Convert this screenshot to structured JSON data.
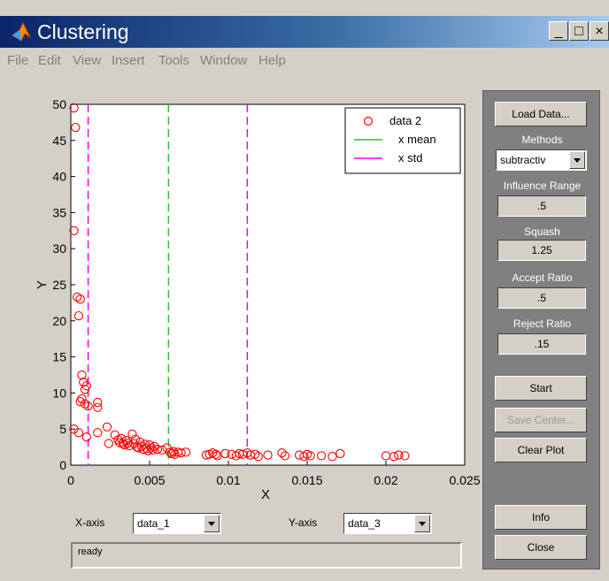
{
  "window": {
    "title": "Clustering"
  },
  "menu": [
    "File",
    "Edit",
    "View",
    "Insert",
    "Tools",
    "Window",
    "Help"
  ],
  "controls": {
    "load_data": "Load Data...",
    "methods_label": "Methods",
    "methods_value": "subtractiv",
    "influence_label": "Influence Range",
    "influence_value": ".5",
    "squash_label": "Squash",
    "squash_value": "1.25",
    "accept_label": "Accept Ratio",
    "accept_value": ".5",
    "reject_label": "Reject Ratio",
    "reject_value": ".15",
    "start": "Start",
    "save_center": "Save Center...",
    "clear_plot": "Clear Plot",
    "info": "Info",
    "close": "Close"
  },
  "axes_select": {
    "x_label": "X-axis",
    "x_value": "data_1",
    "y_label": "Y-axis",
    "y_value": "data_3"
  },
  "status": "ready",
  "colors": {
    "points": "#ff0000",
    "mean_line": "#33bb33",
    "std_line": "#ee00ee",
    "title_bar": "#0a246a"
  },
  "chart_data": {
    "type": "scatter",
    "xlabel": "X",
    "ylabel": "Y",
    "xlim": [
      0,
      0.025
    ],
    "ylim": [
      0,
      50
    ],
    "xticks": [
      "0",
      "0.005",
      "0.01",
      "0.015",
      "0.02",
      "0.025"
    ],
    "yticks": [
      "0",
      "5",
      "10",
      "15",
      "20",
      "25",
      "30",
      "35",
      "40",
      "45",
      "50"
    ],
    "legend": [
      "data 2",
      "x mean",
      "x std"
    ],
    "legend_position": "top-right",
    "x_mean": 0.0062,
    "x_std": [
      0.0011,
      0.0112
    ],
    "points": [
      [
        0.0002,
        49.5
      ],
      [
        0.0003,
        46.8
      ],
      [
        0.0002,
        32.5
      ],
      [
        0.0004,
        23.3
      ],
      [
        0.0006,
        23.0
      ],
      [
        0.0005,
        20.7
      ],
      [
        0.0007,
        12.5
      ],
      [
        0.0008,
        11.5
      ],
      [
        0.001,
        11.0
      ],
      [
        0.0009,
        10.5
      ],
      [
        0.0007,
        9.2
      ],
      [
        0.0006,
        8.8
      ],
      [
        0.0009,
        8.5
      ],
      [
        0.0011,
        8.2
      ],
      [
        0.0017,
        8.7
      ],
      [
        0.0017,
        8.0
      ],
      [
        0.0002,
        5.0
      ],
      [
        0.0005,
        4.5
      ],
      [
        0.001,
        3.9
      ],
      [
        0.0017,
        4.5
      ],
      [
        0.0023,
        5.3
      ],
      [
        0.0024,
        3.0
      ],
      [
        0.0028,
        4.2
      ],
      [
        0.003,
        3.5
      ],
      [
        0.0031,
        3.1
      ],
      [
        0.0032,
        3.7
      ],
      [
        0.0033,
        3.0
      ],
      [
        0.0034,
        2.8
      ],
      [
        0.0035,
        3.4
      ],
      [
        0.0036,
        3.0
      ],
      [
        0.0037,
        2.7
      ],
      [
        0.0039,
        4.3
      ],
      [
        0.004,
        3.0
      ],
      [
        0.0041,
        3.6
      ],
      [
        0.0042,
        2.5
      ],
      [
        0.0043,
        2.4
      ],
      [
        0.0044,
        3.2
      ],
      [
        0.0045,
        2.6
      ],
      [
        0.0046,
        2.2
      ],
      [
        0.0047,
        2.9
      ],
      [
        0.0048,
        2.3
      ],
      [
        0.0049,
        2.0
      ],
      [
        0.005,
        2.8
      ],
      [
        0.0051,
        2.4
      ],
      [
        0.0052,
        2.1
      ],
      [
        0.0053,
        2.6
      ],
      [
        0.0055,
        2.2
      ],
      [
        0.0058,
        2.1
      ],
      [
        0.0061,
        2.4
      ],
      [
        0.0063,
        1.8
      ],
      [
        0.0064,
        1.6
      ],
      [
        0.0065,
        1.9
      ],
      [
        0.0066,
        1.5
      ],
      [
        0.0068,
        1.8
      ],
      [
        0.007,
        1.7
      ],
      [
        0.0073,
        1.8
      ],
      [
        0.0086,
        1.4
      ],
      [
        0.0088,
        1.5
      ],
      [
        0.009,
        1.7
      ],
      [
        0.0092,
        1.5
      ],
      [
        0.0093,
        1.3
      ],
      [
        0.0098,
        1.6
      ],
      [
        0.0102,
        1.5
      ],
      [
        0.0105,
        1.3
      ],
      [
        0.0107,
        1.6
      ],
      [
        0.0109,
        1.5
      ],
      [
        0.0112,
        1.7
      ],
      [
        0.0114,
        1.4
      ],
      [
        0.0117,
        1.5
      ],
      [
        0.0119,
        1.2
      ],
      [
        0.0125,
        1.4
      ],
      [
        0.0134,
        1.7
      ],
      [
        0.0136,
        1.3
      ],
      [
        0.0145,
        1.4
      ],
      [
        0.0148,
        1.2
      ],
      [
        0.015,
        1.5
      ],
      [
        0.0152,
        1.3
      ],
      [
        0.0159,
        1.3
      ],
      [
        0.0166,
        1.2
      ],
      [
        0.0171,
        1.6
      ],
      [
        0.02,
        1.3
      ],
      [
        0.0205,
        1.2
      ],
      [
        0.0208,
        1.4
      ],
      [
        0.0212,
        1.3
      ]
    ]
  }
}
